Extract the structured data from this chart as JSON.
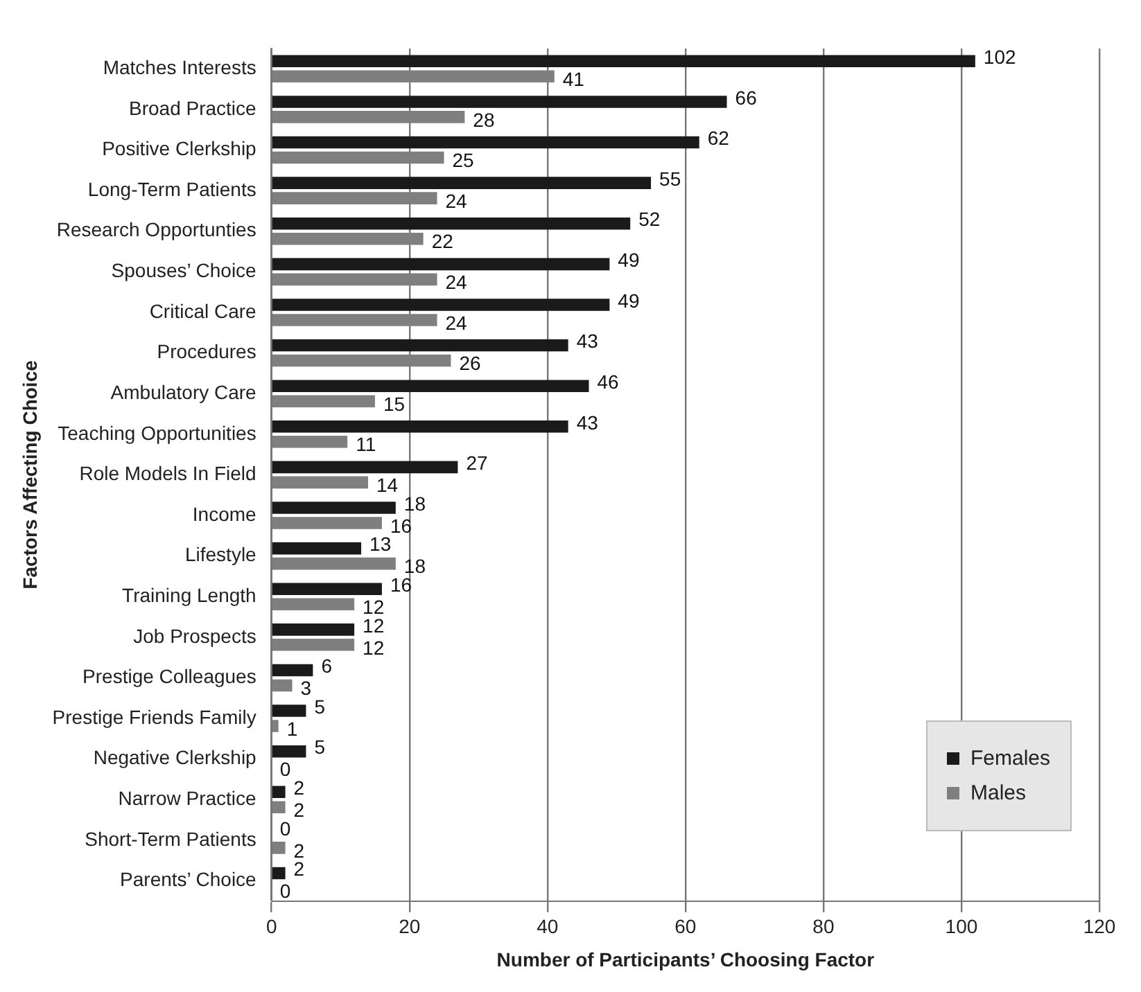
{
  "chart_data": {
    "type": "bar",
    "orientation": "horizontal",
    "xlabel": "Number of Participants’ Choosing Factor",
    "ylabel": "Factors Affecting Choice",
    "categories": [
      "Matches Interests",
      "Broad Practice",
      "Positive Clerkship",
      "Long-Term Patients",
      "Research Opportunties",
      "Spouses’ Choice",
      "Critical Care",
      "Procedures",
      "Ambulatory Care",
      "Teaching Opportunities",
      "Role Models In Field",
      "Income",
      "Lifestyle",
      "Training Length",
      "Job Prospects",
      "Prestige Colleagues",
      "Prestige Friends Family",
      "Negative Clerkship",
      "Narrow Practice",
      "Short-Term Patients",
      "Parents’ Choice"
    ],
    "series": [
      {
        "name": "Females",
        "color": "#1a1a1a",
        "values": [
          102,
          66,
          62,
          55,
          52,
          49,
          49,
          43,
          46,
          43,
          27,
          18,
          13,
          16,
          12,
          6,
          5,
          5,
          2,
          0,
          2
        ]
      },
      {
        "name": "Males",
        "color": "#7f7f7f",
        "values": [
          41,
          28,
          25,
          24,
          22,
          24,
          24,
          26,
          15,
          11,
          14,
          16,
          18,
          12,
          12,
          3,
          1,
          0,
          2,
          2,
          0
        ]
      }
    ],
    "xlim": [
      0,
      120
    ],
    "xticks": [
      0,
      20,
      40,
      60,
      80,
      100,
      120
    ],
    "grid": "x",
    "legend": "bottom right",
    "data_labels": true
  }
}
